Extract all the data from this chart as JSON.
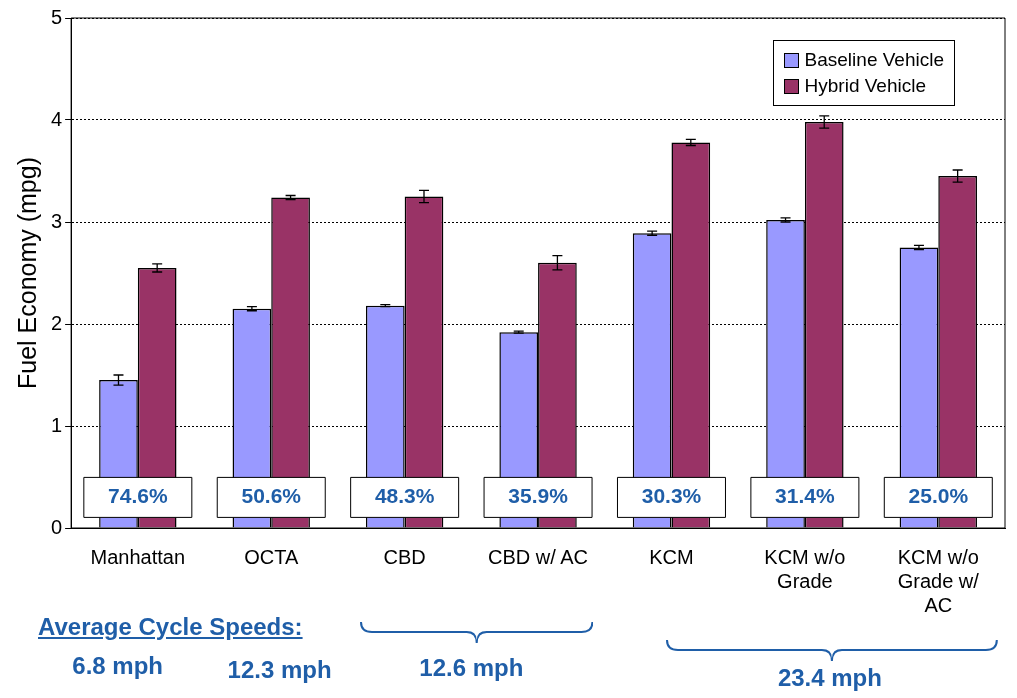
{
  "chart_data": {
    "type": "bar",
    "ylabel": "Fuel Economy (mpg)",
    "categories": [
      "Manhattan",
      "OCTA",
      "CBD",
      "CBD w/ AC",
      "KCM",
      "KCM w/o Grade",
      "KCM w/o Grade w/ AC"
    ],
    "series": [
      {
        "name": "Baseline Vehicle",
        "color": "#9999ff",
        "values": [
          1.45,
          2.15,
          2.18,
          1.92,
          2.89,
          3.02,
          2.75
        ],
        "errors": [
          0.05,
          0.02,
          0.01,
          0.01,
          0.02,
          0.02,
          0.02
        ]
      },
      {
        "name": "Hybrid Vehicle",
        "color": "#993366",
        "values": [
          2.55,
          3.24,
          3.25,
          2.6,
          3.78,
          3.98,
          3.45
        ],
        "errors": [
          0.04,
          0.02,
          0.06,
          0.07,
          0.03,
          0.06,
          0.06
        ]
      }
    ],
    "ylim": [
      0,
      5
    ],
    "yticks": [
      0,
      1,
      2,
      3,
      4,
      5
    ],
    "grid": "y",
    "legend": "top right",
    "annotations": [
      {
        "text": "74.6%",
        "x": "Manhattan",
        "y": 0.3
      },
      {
        "text": "50.6%",
        "x": "OCTA",
        "y": 0.3
      },
      {
        "text": "48.3%",
        "x": "CBD",
        "y": 0.3
      },
      {
        "text": "35.9%",
        "x": "CBD w/ AC",
        "y": 0.3
      },
      {
        "text": "30.3%",
        "x": "KCM",
        "y": 0.3
      },
      {
        "text": "31.4%",
        "x": "KCM w/o Grade",
        "y": 0.3
      },
      {
        "text": "25.0%",
        "x": "KCM w/o Grade w/ AC",
        "y": 0.3
      },
      "Average Cycle Speeds:",
      "6.8 mph",
      "12.3 mph",
      "12.6 mph",
      "23.4 mph"
    ]
  }
}
